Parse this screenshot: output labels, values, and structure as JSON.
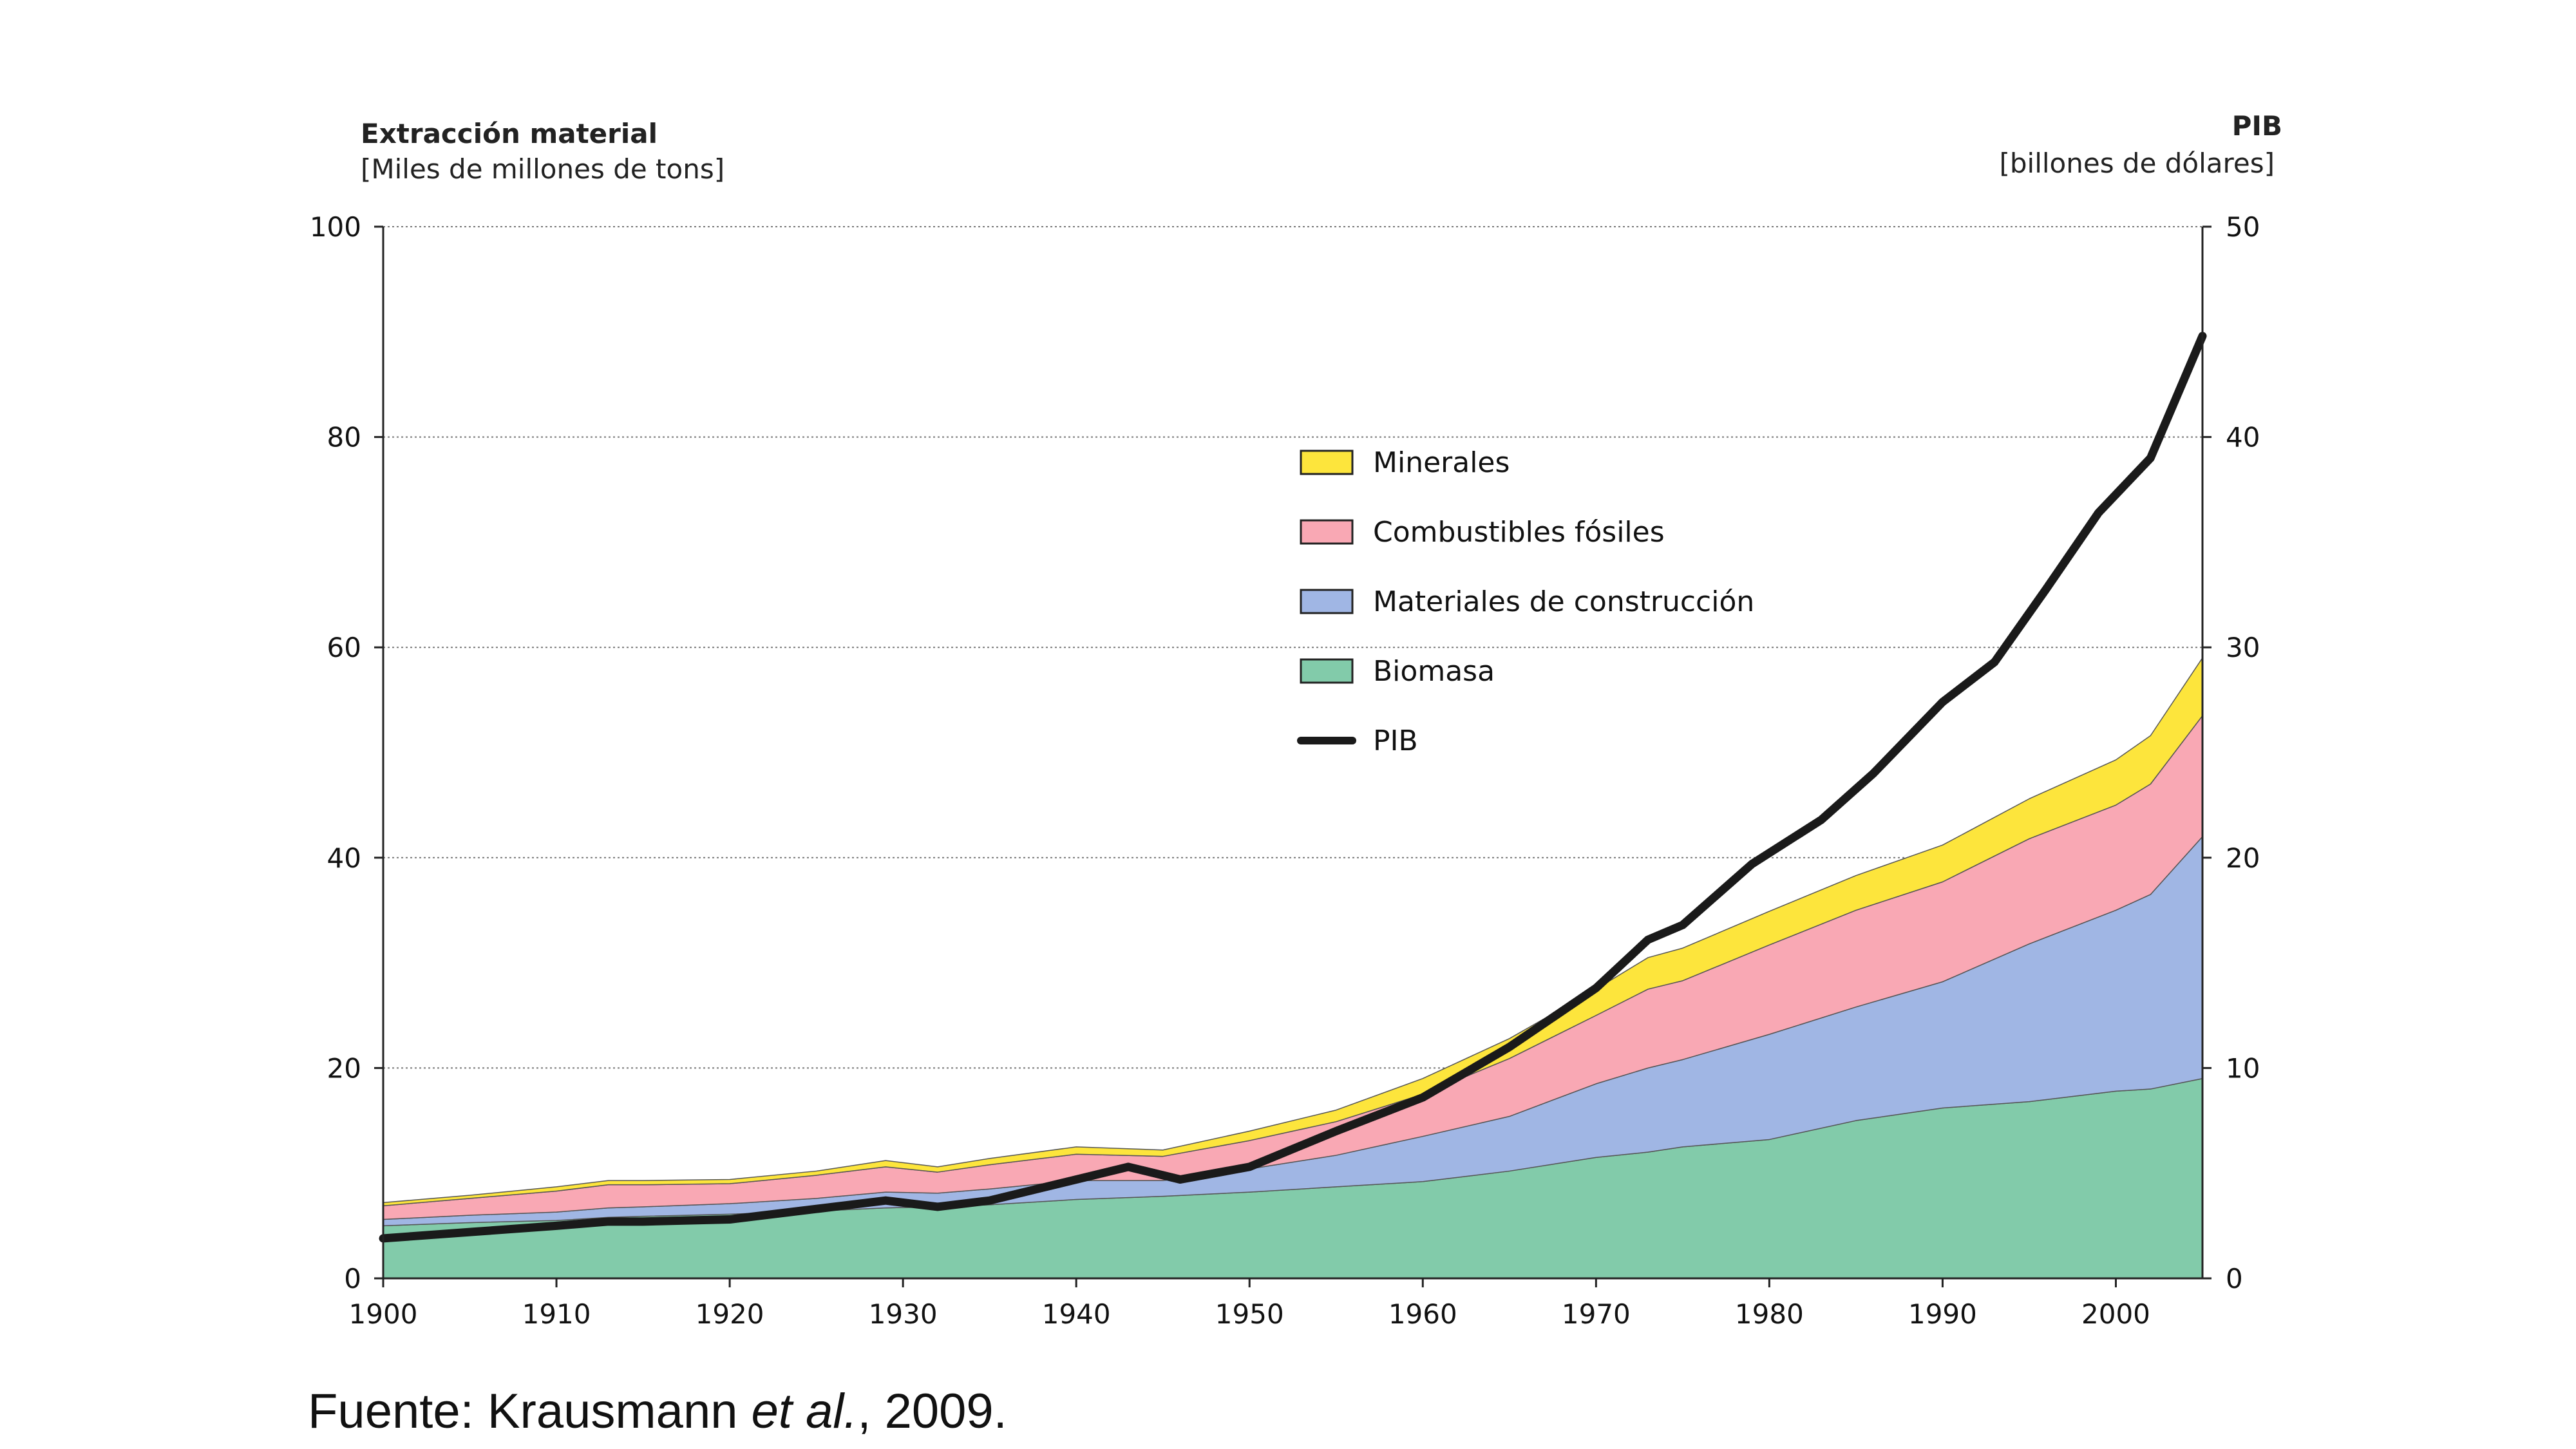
{
  "chart_data": {
    "type": "area",
    "left_axis": {
      "title": "Extracción material",
      "unit": "[Miles de millones de tons]",
      "ylim": [
        0,
        100
      ],
      "ticks": [
        0,
        20,
        40,
        60,
        80,
        100
      ]
    },
    "right_axis": {
      "title": "PIB",
      "unit": "[billones de dólares]",
      "ylim": [
        0,
        50
      ],
      "ticks": [
        0,
        10,
        20,
        30,
        40,
        50
      ]
    },
    "x_axis": {
      "xlim": [
        1900,
        2005
      ],
      "ticks": [
        1900,
        1910,
        1920,
        1930,
        1940,
        1950,
        1960,
        1970,
        1980,
        1990,
        2000
      ]
    },
    "grid": "horizontal dotted",
    "stack_order": [
      "Biomasa",
      "Materiales de construcción",
      "Combustibles fósiles",
      "Minerales"
    ],
    "x": [
      1900,
      1905,
      1910,
      1913,
      1915,
      1920,
      1925,
      1929,
      1932,
      1935,
      1940,
      1945,
      1950,
      1955,
      1960,
      1965,
      1970,
      1973,
      1975,
      1980,
      1985,
      1990,
      1995,
      2000,
      2002,
      2005
    ],
    "series": [
      {
        "name": "Biomasa",
        "axis": "left",
        "color": "#82cbaa",
        "values": [
          5.0,
          5.3,
          5.5,
          5.8,
          5.9,
          6.1,
          6.4,
          6.7,
          6.8,
          7.0,
          7.5,
          7.8,
          8.2,
          8.7,
          9.2,
          10.2,
          11.5,
          12.0,
          12.5,
          13.2,
          15.0,
          16.2,
          16.8,
          17.8,
          18.0,
          19.0
        ]
      },
      {
        "name": "Materiales de construcción",
        "axis": "left",
        "color": "#a0b6e4",
        "values": [
          0.6,
          0.7,
          0.8,
          0.9,
          0.9,
          1.0,
          1.2,
          1.5,
          1.3,
          1.5,
          1.8,
          1.5,
          2.2,
          3.0,
          4.3,
          5.2,
          7.0,
          8.0,
          8.3,
          10.0,
          10.8,
          12.0,
          15.0,
          17.2,
          18.5,
          23.0
        ]
      },
      {
        "name": "Combustibles fósiles",
        "axis": "left",
        "color": "#f9a8b4",
        "values": [
          1.3,
          1.6,
          2.0,
          2.2,
          2.1,
          1.9,
          2.2,
          2.4,
          2.0,
          2.3,
          2.5,
          2.3,
          2.7,
          3.2,
          4.0,
          5.5,
          6.5,
          7.5,
          7.5,
          8.5,
          9.2,
          9.5,
          10.0,
          10.0,
          10.5,
          11.5
        ]
      },
      {
        "name": "Minerales",
        "axis": "left",
        "color": "#fde53c",
        "values": [
          0.3,
          0.3,
          0.4,
          0.4,
          0.4,
          0.4,
          0.4,
          0.6,
          0.5,
          0.6,
          0.7,
          0.6,
          0.9,
          1.1,
          1.5,
          1.9,
          2.5,
          3.0,
          3.1,
          3.2,
          3.3,
          3.5,
          3.8,
          4.3,
          4.6,
          5.5
        ]
      },
      {
        "name": "PIB",
        "axis": "right",
        "color": "#1a1a1a",
        "type": "line",
        "x": [
          1900,
          1905,
          1910,
          1913,
          1915,
          1920,
          1925,
          1929,
          1932,
          1935,
          1938,
          1943,
          1946,
          1950,
          1955,
          1960,
          1965,
          1970,
          1973,
          1975,
          1979,
          1983,
          1986,
          1990,
          1993,
          1996,
          1999,
          2002,
          2005
        ],
        "values": [
          1.9,
          2.2,
          2.5,
          2.7,
          2.7,
          2.8,
          3.3,
          3.7,
          3.4,
          3.7,
          4.3,
          5.3,
          4.7,
          5.3,
          7.0,
          8.6,
          11.0,
          13.8,
          16.1,
          16.8,
          19.7,
          21.8,
          24.0,
          27.4,
          29.3,
          32.8,
          36.4,
          39.0,
          44.8
        ]
      }
    ],
    "legend": [
      {
        "label": "Minerales",
        "color": "#fde53c",
        "kind": "box"
      },
      {
        "label": "Combustibles fósiles",
        "color": "#f9a8b4",
        "kind": "box"
      },
      {
        "label": "Materiales de construcción",
        "color": "#a0b6e4",
        "kind": "box"
      },
      {
        "label": "Biomasa",
        "color": "#82cbaa",
        "kind": "box"
      },
      {
        "label": "PIB",
        "color": "#1a1a1a",
        "kind": "line"
      }
    ]
  },
  "source": {
    "prefix": "Fuente: Krausmann ",
    "italic": "et al.",
    "suffix": ", 2009."
  }
}
